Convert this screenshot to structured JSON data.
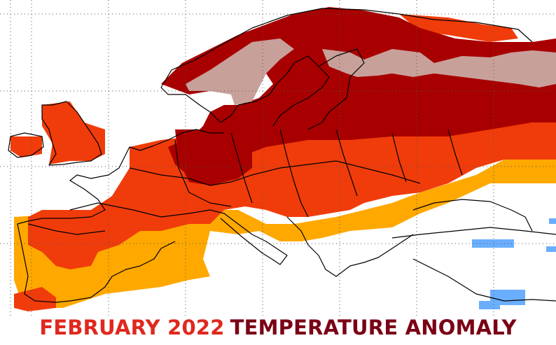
{
  "title": {
    "part1": "FEBRUARY 2022",
    "part2": "TEMPERATURE ANOMALY"
  },
  "colors": {
    "background": "#ffffff",
    "coast": "#000000",
    "grid": "#555555",
    "title_part1": "#e0281e",
    "title_part2": "#7a0016",
    "very_warm": "#a80000",
    "warm": "#f03c0a",
    "mild": "#ffa800",
    "extreme_cold_pattern": "#c8a09a",
    "cold": "#6aaeff"
  },
  "map": {
    "region": "Europe",
    "anomaly_classes": [
      "extreme-warm",
      "very-warm",
      "warm",
      "mild-warm",
      "cool"
    ]
  }
}
